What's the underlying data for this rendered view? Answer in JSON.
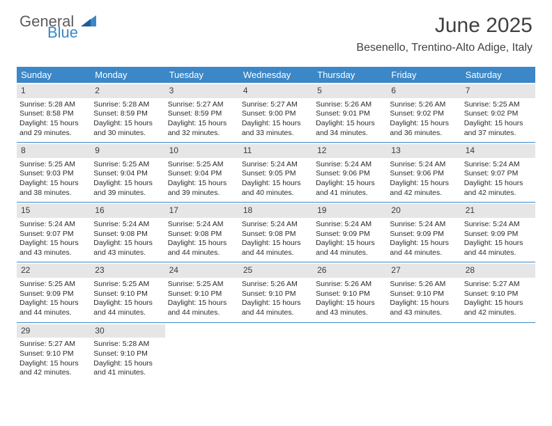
{
  "brand": {
    "name1": "General",
    "name2": "Blue"
  },
  "title": "June 2025",
  "location": "Besenello, Trentino-Alto Adige, Italy",
  "colors": {
    "header_bg": "#3b87c8",
    "header_text": "#ffffff",
    "daynum_bg": "#e6e6e6",
    "text": "#2a2a2a",
    "title_text": "#414141",
    "row_border": "#3b87c8"
  },
  "weekdays": [
    "Sunday",
    "Monday",
    "Tuesday",
    "Wednesday",
    "Thursday",
    "Friday",
    "Saturday"
  ],
  "weeks": [
    [
      {
        "n": "1",
        "sr": "5:28 AM",
        "ss": "8:58 PM",
        "dl": "15 hours and 29 minutes."
      },
      {
        "n": "2",
        "sr": "5:28 AM",
        "ss": "8:59 PM",
        "dl": "15 hours and 30 minutes."
      },
      {
        "n": "3",
        "sr": "5:27 AM",
        "ss": "8:59 PM",
        "dl": "15 hours and 32 minutes."
      },
      {
        "n": "4",
        "sr": "5:27 AM",
        "ss": "9:00 PM",
        "dl": "15 hours and 33 minutes."
      },
      {
        "n": "5",
        "sr": "5:26 AM",
        "ss": "9:01 PM",
        "dl": "15 hours and 34 minutes."
      },
      {
        "n": "6",
        "sr": "5:26 AM",
        "ss": "9:02 PM",
        "dl": "15 hours and 36 minutes."
      },
      {
        "n": "7",
        "sr": "5:25 AM",
        "ss": "9:02 PM",
        "dl": "15 hours and 37 minutes."
      }
    ],
    [
      {
        "n": "8",
        "sr": "5:25 AM",
        "ss": "9:03 PM",
        "dl": "15 hours and 38 minutes."
      },
      {
        "n": "9",
        "sr": "5:25 AM",
        "ss": "9:04 PM",
        "dl": "15 hours and 39 minutes."
      },
      {
        "n": "10",
        "sr": "5:25 AM",
        "ss": "9:04 PM",
        "dl": "15 hours and 39 minutes."
      },
      {
        "n": "11",
        "sr": "5:24 AM",
        "ss": "9:05 PM",
        "dl": "15 hours and 40 minutes."
      },
      {
        "n": "12",
        "sr": "5:24 AM",
        "ss": "9:06 PM",
        "dl": "15 hours and 41 minutes."
      },
      {
        "n": "13",
        "sr": "5:24 AM",
        "ss": "9:06 PM",
        "dl": "15 hours and 42 minutes."
      },
      {
        "n": "14",
        "sr": "5:24 AM",
        "ss": "9:07 PM",
        "dl": "15 hours and 42 minutes."
      }
    ],
    [
      {
        "n": "15",
        "sr": "5:24 AM",
        "ss": "9:07 PM",
        "dl": "15 hours and 43 minutes."
      },
      {
        "n": "16",
        "sr": "5:24 AM",
        "ss": "9:08 PM",
        "dl": "15 hours and 43 minutes."
      },
      {
        "n": "17",
        "sr": "5:24 AM",
        "ss": "9:08 PM",
        "dl": "15 hours and 44 minutes."
      },
      {
        "n": "18",
        "sr": "5:24 AM",
        "ss": "9:08 PM",
        "dl": "15 hours and 44 minutes."
      },
      {
        "n": "19",
        "sr": "5:24 AM",
        "ss": "9:09 PM",
        "dl": "15 hours and 44 minutes."
      },
      {
        "n": "20",
        "sr": "5:24 AM",
        "ss": "9:09 PM",
        "dl": "15 hours and 44 minutes."
      },
      {
        "n": "21",
        "sr": "5:24 AM",
        "ss": "9:09 PM",
        "dl": "15 hours and 44 minutes."
      }
    ],
    [
      {
        "n": "22",
        "sr": "5:25 AM",
        "ss": "9:09 PM",
        "dl": "15 hours and 44 minutes."
      },
      {
        "n": "23",
        "sr": "5:25 AM",
        "ss": "9:10 PM",
        "dl": "15 hours and 44 minutes."
      },
      {
        "n": "24",
        "sr": "5:25 AM",
        "ss": "9:10 PM",
        "dl": "15 hours and 44 minutes."
      },
      {
        "n": "25",
        "sr": "5:26 AM",
        "ss": "9:10 PM",
        "dl": "15 hours and 44 minutes."
      },
      {
        "n": "26",
        "sr": "5:26 AM",
        "ss": "9:10 PM",
        "dl": "15 hours and 43 minutes."
      },
      {
        "n": "27",
        "sr": "5:26 AM",
        "ss": "9:10 PM",
        "dl": "15 hours and 43 minutes."
      },
      {
        "n": "28",
        "sr": "5:27 AM",
        "ss": "9:10 PM",
        "dl": "15 hours and 42 minutes."
      }
    ],
    [
      {
        "n": "29",
        "sr": "5:27 AM",
        "ss": "9:10 PM",
        "dl": "15 hours and 42 minutes."
      },
      {
        "n": "30",
        "sr": "5:28 AM",
        "ss": "9:10 PM",
        "dl": "15 hours and 41 minutes."
      },
      null,
      null,
      null,
      null,
      null
    ]
  ],
  "labels": {
    "sunrise": "Sunrise:",
    "sunset": "Sunset:",
    "daylight": "Daylight:"
  }
}
